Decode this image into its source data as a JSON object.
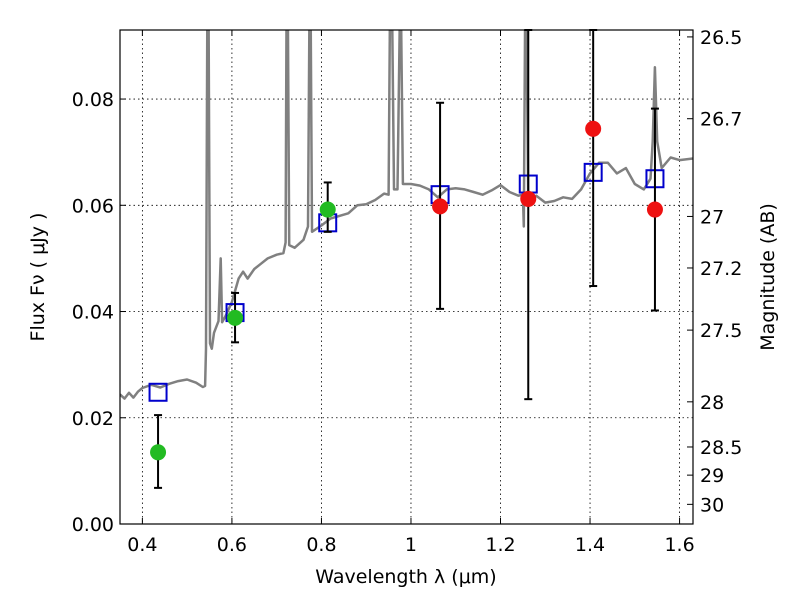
{
  "chart_data": {
    "type": "scatter",
    "xlabel": "Wavelength  λ (μm)",
    "ylabel": "Flux  Fν  ( μJy )",
    "ylabel_right": "Magnitude (AB)",
    "xlim": [
      0.35,
      1.63
    ],
    "ylim": [
      0.0,
      0.093
    ],
    "grid": true,
    "x_ticks": [
      0.4,
      0.6,
      0.8,
      1.0,
      1.2,
      1.4,
      1.6
    ],
    "x_tick_labels": [
      "0.4",
      "0.6",
      "0.8",
      "1",
      "1.2",
      "1.4",
      "1.6"
    ],
    "y_ticks": [
      0.0,
      0.02,
      0.04,
      0.06,
      0.08
    ],
    "y_tick_labels": [
      "0.00",
      "0.02",
      "0.04",
      "0.06",
      "0.08"
    ],
    "right_ticks": [
      {
        "label": "26.5",
        "flux": 0.0917
      },
      {
        "label": "26.7",
        "flux": 0.0763
      },
      {
        "label": "27",
        "flux": 0.0579
      },
      {
        "label": "27.2",
        "flux": 0.0482
      },
      {
        "label": "27.5",
        "flux": 0.0365
      },
      {
        "label": "28",
        "flux": 0.023
      },
      {
        "label": "28.5",
        "flux": 0.0145
      },
      {
        "label": "29",
        "flux": 0.0092
      },
      {
        "label": "30",
        "flux": 0.0037
      }
    ],
    "series": [
      {
        "kind": "line",
        "color": "#808080",
        "points": [
          [
            0.35,
            0.0244
          ],
          [
            0.36,
            0.0236
          ],
          [
            0.37,
            0.0247
          ],
          [
            0.38,
            0.0238
          ],
          [
            0.39,
            0.0249
          ],
          [
            0.4,
            0.0256
          ],
          [
            0.42,
            0.0262
          ],
          [
            0.44,
            0.0257
          ],
          [
            0.46,
            0.0264
          ],
          [
            0.48,
            0.0269
          ],
          [
            0.5,
            0.0272
          ],
          [
            0.52,
            0.0266
          ],
          [
            0.535,
            0.0258
          ],
          [
            0.54,
            0.026
          ],
          [
            0.542,
            0.033
          ],
          [
            0.545,
            0.095
          ],
          [
            0.548,
            0.095
          ],
          [
            0.551,
            0.034
          ],
          [
            0.555,
            0.033
          ],
          [
            0.56,
            0.036
          ],
          [
            0.57,
            0.0382
          ],
          [
            0.575,
            0.05
          ],
          [
            0.578,
            0.038
          ],
          [
            0.585,
            0.039
          ],
          [
            0.6,
            0.0418
          ],
          [
            0.615,
            0.0462
          ],
          [
            0.625,
            0.0475
          ],
          [
            0.635,
            0.0462
          ],
          [
            0.65,
            0.048
          ],
          [
            0.665,
            0.049
          ],
          [
            0.68,
            0.05
          ],
          [
            0.7,
            0.0507
          ],
          [
            0.715,
            0.051
          ],
          [
            0.72,
            0.053
          ],
          [
            0.722,
            0.095
          ],
          [
            0.725,
            0.095
          ],
          [
            0.728,
            0.0525
          ],
          [
            0.74,
            0.052
          ],
          [
            0.76,
            0.0535
          ],
          [
            0.77,
            0.056
          ],
          [
            0.773,
            0.095
          ],
          [
            0.776,
            0.095
          ],
          [
            0.779,
            0.055
          ],
          [
            0.8,
            0.0562
          ],
          [
            0.82,
            0.0575
          ],
          [
            0.84,
            0.058
          ],
          [
            0.86,
            0.0585
          ],
          [
            0.88,
            0.06
          ],
          [
            0.9,
            0.0602
          ],
          [
            0.92,
            0.061
          ],
          [
            0.94,
            0.0622
          ],
          [
            0.95,
            0.062
          ],
          [
            0.953,
            0.095
          ],
          [
            0.958,
            0.095
          ],
          [
            0.962,
            0.063
          ],
          [
            0.97,
            0.063
          ],
          [
            0.975,
            0.095
          ],
          [
            0.978,
            0.095
          ],
          [
            0.982,
            0.064
          ],
          [
            1.0,
            0.064
          ],
          [
            1.02,
            0.0637
          ],
          [
            1.04,
            0.063
          ],
          [
            1.06,
            0.0615
          ],
          [
            1.08,
            0.063
          ],
          [
            1.1,
            0.0632
          ],
          [
            1.12,
            0.063
          ],
          [
            1.14,
            0.0625
          ],
          [
            1.16,
            0.062
          ],
          [
            1.18,
            0.0628
          ],
          [
            1.2,
            0.0638
          ],
          [
            1.22,
            0.0625
          ],
          [
            1.24,
            0.0618
          ],
          [
            1.25,
            0.062
          ],
          [
            1.252,
            0.056
          ],
          [
            1.255,
            0.095
          ],
          [
            1.258,
            0.095
          ],
          [
            1.262,
            0.06
          ],
          [
            1.27,
            0.061
          ],
          [
            1.28,
            0.0618
          ],
          [
            1.3,
            0.0605
          ],
          [
            1.32,
            0.0608
          ],
          [
            1.34,
            0.0615
          ],
          [
            1.36,
            0.0612
          ],
          [
            1.38,
            0.063
          ],
          [
            1.4,
            0.066
          ],
          [
            1.42,
            0.068
          ],
          [
            1.44,
            0.068
          ],
          [
            1.46,
            0.066
          ],
          [
            1.48,
            0.067
          ],
          [
            1.5,
            0.064
          ],
          [
            1.52,
            0.063
          ],
          [
            1.535,
            0.065
          ],
          [
            1.54,
            0.072
          ],
          [
            1.545,
            0.086
          ],
          [
            1.55,
            0.072
          ],
          [
            1.56,
            0.067
          ],
          [
            1.58,
            0.069
          ],
          [
            1.6,
            0.0685
          ],
          [
            1.63,
            0.0688
          ]
        ]
      },
      {
        "kind": "open-square",
        "color": "#0000cc",
        "points": [
          [
            0.435,
            0.0248
          ],
          [
            0.607,
            0.0398
          ],
          [
            0.814,
            0.0567
          ],
          [
            1.065,
            0.062
          ],
          [
            1.262,
            0.064
          ],
          [
            1.407,
            0.0662
          ],
          [
            1.545,
            0.065
          ]
        ]
      },
      {
        "kind": "filled-circle",
        "color": "#22bb22",
        "points": [
          [
            0.435,
            0.0135
          ],
          [
            0.607,
            0.0388
          ],
          [
            0.814,
            0.0592
          ]
        ],
        "errors": [
          [
            0.0068,
            0.0205
          ],
          [
            0.0342,
            0.0435
          ],
          [
            0.055,
            0.0643
          ]
        ]
      },
      {
        "kind": "filled-circle",
        "color": "#ee1111",
        "points": [
          [
            1.065,
            0.0598
          ],
          [
            1.262,
            0.0612
          ],
          [
            1.407,
            0.0744
          ],
          [
            1.545,
            0.0592
          ]
        ],
        "errors": [
          [
            0.0405,
            0.0793
          ],
          [
            0.0235,
            0.093
          ],
          [
            0.0448,
            0.093
          ],
          [
            0.0402,
            0.0782
          ]
        ]
      }
    ]
  }
}
